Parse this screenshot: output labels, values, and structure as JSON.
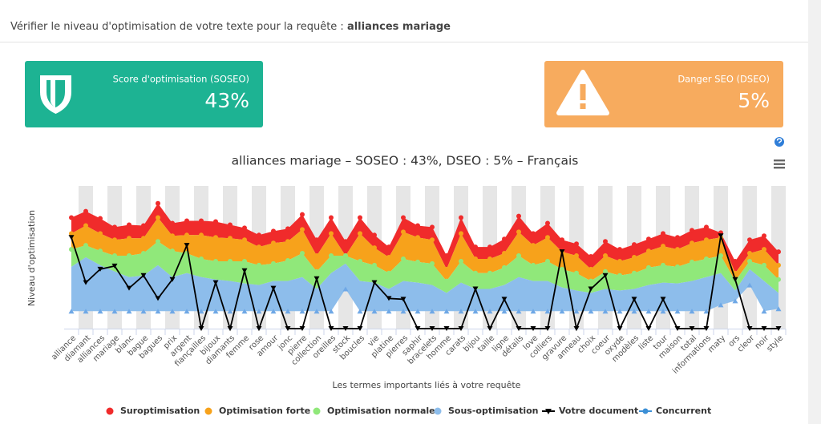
{
  "header": {
    "prefix": "Vérifier le niveau d'optimisation de votre texte pour la requête :",
    "query": "alliances mariage"
  },
  "cards": [
    {
      "label": "Score d'optimisation (SOSEO)",
      "value": "43%"
    },
    {
      "label": "Danger SEO (DSEO)",
      "value": "5%"
    }
  ],
  "chart_data": {
    "type": "arearange",
    "title": "alliances mariage – SOSEO : 43%, DSEO : 5% – Français",
    "x_label": "Les termes importants liés à votre requête",
    "y_label": "Niveau d'optimisation",
    "categories": [
      "alliance",
      "diamant",
      "alliances",
      "mariage",
      "blanc",
      "bague",
      "bagues",
      "prix",
      "argent",
      "fiançailles",
      "bijoux",
      "diamants",
      "femme",
      "rose",
      "amour",
      "jonc",
      "pierre",
      "collection",
      "oreilles",
      "stock",
      "boucles",
      "vie",
      "platine",
      "pierres",
      "saphir",
      "bracelets",
      "homme",
      "carats",
      "bijou",
      "taille",
      "ligne",
      "détails",
      "love",
      "colliers",
      "gravure",
      "anneau",
      "choix",
      "coeur",
      "oxyde",
      "modèles",
      "liste",
      "tour",
      "maison",
      "total",
      "informations",
      "maty",
      "ors",
      "cleor",
      "noir",
      "style"
    ],
    "ylim": [
      0,
      180
    ],
    "series": [
      {
        "name": "Suroptimisation",
        "color": "#f02b2b",
        "values": [
          140,
          148,
          139,
          128,
          131,
          130,
          158,
          133,
          136,
          136,
          135,
          131,
          127,
          118,
          123,
          126,
          144,
          112,
          140,
          110,
          140,
          118,
          103,
          140,
          130,
          128,
          92,
          140,
          103,
          103,
          113,
          142,
          120,
          133,
          112,
          107,
          91,
          110,
          100,
          106,
          113,
          120,
          115,
          124,
          128,
          121,
          85,
          112,
          117,
          97
        ]
      },
      {
        "name": "Optimisation forte",
        "color": "#f7a21b",
        "values": [
          120,
          130,
          120,
          112,
          114,
          114,
          140,
          117,
          118,
          118,
          115,
          114,
          112,
          103,
          108,
          110,
          125,
          92,
          120,
          92,
          120,
          102,
          90,
          122,
          115,
          112,
          75,
          120,
          88,
          88,
          95,
          122,
          105,
          115,
          97,
          92,
          75,
          92,
          85,
          90,
          98,
          104,
          100,
          108,
          112,
          115,
          70,
          95,
          100,
          80
        ]
      },
      {
        "name": "Optimisation normale",
        "color": "#90e87a",
        "values": [
          100,
          105,
          98,
          92,
          92,
          95,
          110,
          98,
          95,
          88,
          85,
          85,
          85,
          80,
          82,
          86,
          95,
          72,
          92,
          92,
          85,
          80,
          70,
          88,
          84,
          82,
          60,
          85,
          70,
          70,
          77,
          92,
          80,
          85,
          75,
          70,
          60,
          72,
          67,
          70,
          77,
          80,
          78,
          84,
          88,
          92,
          60,
          85,
          80,
          62
        ]
      },
      {
        "name": "Sous-optimisation",
        "color": "#8dbdeb",
        "values": [
          78,
          90,
          80,
          72,
          65,
          67,
          80,
          65,
          70,
          65,
          62,
          60,
          57,
          55,
          60,
          60,
          65,
          50,
          70,
          82,
          60,
          58,
          50,
          60,
          58,
          55,
          45,
          58,
          50,
          50,
          55,
          65,
          60,
          60,
          52,
          48,
          45,
          50,
          48,
          50,
          55,
          58,
          57,
          60,
          65,
          70,
          48,
          75,
          60,
          45
        ],
        "low": [
          22,
          22,
          22,
          22,
          22,
          22,
          22,
          22,
          22,
          22,
          22,
          22,
          22,
          22,
          22,
          22,
          22,
          22,
          22,
          50,
          22,
          22,
          22,
          22,
          22,
          22,
          22,
          22,
          22,
          22,
          22,
          22,
          22,
          22,
          22,
          22,
          22,
          22,
          22,
          22,
          22,
          22,
          22,
          22,
          22,
          30,
          35,
          55,
          22,
          25
        ]
      },
      {
        "name": "Votre document",
        "color": "#000000",
        "values": [
          115,
          58,
          75,
          79,
          51,
          67,
          38,
          62,
          105,
          0,
          58,
          0,
          73,
          0,
          51,
          0,
          0,
          63,
          0,
          0,
          0,
          58,
          38,
          37,
          0,
          0,
          0,
          0,
          50,
          0,
          37,
          0,
          0,
          0,
          97,
          0,
          50,
          67,
          0,
          37,
          0,
          37,
          0,
          0,
          0,
          117,
          62,
          0,
          0,
          0
        ]
      },
      {
        "name": "Concurrent",
        "color": "#3b8fd6"
      }
    ]
  }
}
